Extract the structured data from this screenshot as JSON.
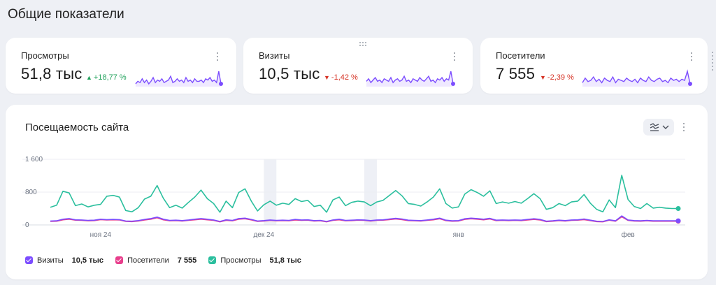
{
  "page": {
    "title": "Общие показатели"
  },
  "colors": {
    "visits": "#7c4dff",
    "visitors": "#e83e8c",
    "views": "#2bbf9e",
    "up": "#1fa15a",
    "down": "#d63325"
  },
  "metrics": [
    {
      "label": "Просмотры",
      "value": "51,8 тыс",
      "delta": "+18,77 %",
      "direction": "up",
      "menu_icon": "kebab-icon",
      "spark": [
        4,
        6,
        5,
        8,
        5,
        7,
        4,
        6,
        9,
        5,
        7,
        6,
        8,
        5,
        6,
        7,
        10,
        5,
        6,
        8,
        6,
        7,
        5,
        9,
        6,
        7,
        5,
        8,
        6,
        6,
        7,
        5,
        8,
        7,
        9,
        6,
        7,
        5,
        14,
        4
      ]
    },
    {
      "label": "Визиты",
      "value": "10,5 тыс",
      "delta": "-1,42 %",
      "direction": "down",
      "menu_icon": "kebab-icon",
      "spark": [
        7,
        9,
        6,
        8,
        10,
        7,
        8,
        6,
        9,
        8,
        7,
        10,
        6,
        8,
        9,
        7,
        8,
        11,
        7,
        8,
        6,
        9,
        8,
        7,
        10,
        8,
        7,
        9,
        11,
        7,
        8,
        6,
        9,
        8,
        10,
        7,
        9,
        8,
        15,
        5
      ]
    },
    {
      "label": "Посетители",
      "value": "7 555",
      "delta": "-2,39 %",
      "direction": "down",
      "menu_icon": "kebab-icon",
      "spark": [
        6,
        10,
        7,
        8,
        11,
        7,
        9,
        6,
        10,
        8,
        7,
        11,
        6,
        9,
        8,
        7,
        10,
        8,
        7,
        9,
        6,
        10,
        8,
        7,
        11,
        8,
        7,
        9,
        10,
        7,
        8,
        6,
        10,
        8,
        9,
        7,
        9,
        8,
        16,
        5
      ]
    }
  ],
  "chart": {
    "title": "Посещаемость сайта",
    "type_button_icon": "line-chart-icon",
    "dropdown_icon": "chevron-down-icon",
    "menu_icon": "kebab-icon",
    "drag_handle_icon": "drag-handle-icon"
  },
  "legend": [
    {
      "key": "visits",
      "label": "Визиты",
      "value": "10,5 тыс"
    },
    {
      "key": "visitors",
      "label": "Посетители",
      "value": "7 555"
    },
    {
      "key": "views",
      "label": "Просмотры",
      "value": "51,8 тыс"
    }
  ],
  "chart_data": {
    "type": "line",
    "ylim": [
      0,
      1600
    ],
    "y_ticks": [
      {
        "value": 1600,
        "label": "1 600"
      },
      {
        "value": 800,
        "label": "800"
      },
      {
        "value": 0,
        "label": "0"
      }
    ],
    "x_count": 101,
    "x_ticks": [
      {
        "index": 8,
        "label": "ноя 24"
      },
      {
        "index": 34,
        "label": "дек 24"
      },
      {
        "index": 65,
        "label": "янв"
      },
      {
        "index": 92,
        "label": "фев"
      }
    ],
    "highlight_ranges": [
      [
        34,
        36
      ],
      [
        50,
        52
      ]
    ],
    "grid": true,
    "legend_position": "bottom-left",
    "series": [
      {
        "name": "Просмотры",
        "key": "views",
        "values": [
          430,
          480,
          820,
          780,
          470,
          510,
          440,
          480,
          500,
          700,
          720,
          680,
          350,
          320,
          420,
          630,
          700,
          960,
          650,
          420,
          480,
          410,
          550,
          680,
          850,
          640,
          520,
          310,
          580,
          420,
          790,
          880,
          580,
          340,
          490,
          580,
          480,
          530,
          500,
          640,
          570,
          600,
          450,
          480,
          310,
          610,
          680,
          470,
          550,
          580,
          560,
          470,
          560,
          600,
          720,
          840,
          710,
          520,
          500,
          460,
          560,
          680,
          880,
          520,
          410,
          440,
          750,
          860,
          790,
          700,
          830,
          520,
          560,
          530,
          570,
          530,
          640,
          760,
          640,
          380,
          420,
          520,
          470,
          560,
          580,
          740,
          530,
          380,
          320,
          610,
          420,
          1210,
          620,
          450,
          400,
          520,
          410,
          430,
          410,
          400,
          400
        ]
      },
      {
        "name": "Посетители",
        "key": "visitors",
        "values": [
          85,
          90,
          125,
          140,
          115,
          110,
          100,
          105,
          130,
          120,
          125,
          120,
          85,
          80,
          95,
          120,
          140,
          175,
          125,
          100,
          105,
          95,
          110,
          125,
          140,
          125,
          110,
          75,
          110,
          100,
          140,
          150,
          120,
          85,
          95,
          110,
          100,
          105,
          100,
          120,
          110,
          115,
          95,
          100,
          75,
          110,
          125,
          100,
          105,
          115,
          110,
          95,
          110,
          115,
          130,
          145,
          130,
          105,
          100,
          95,
          110,
          125,
          150,
          105,
          90,
          95,
          135,
          150,
          140,
          125,
          145,
          105,
          110,
          105,
          110,
          105,
          120,
          135,
          120,
          80,
          90,
          105,
          95,
          110,
          115,
          130,
          105,
          80,
          75,
          115,
          90,
          200,
          110,
          95,
          90,
          100,
          90,
          90,
          90,
          90,
          90
        ]
      },
      {
        "name": "Визиты",
        "key": "visits",
        "values": [
          95,
          100,
          140,
          155,
          125,
          120,
          110,
          115,
          140,
          130,
          135,
          130,
          95,
          90,
          105,
          135,
          155,
          190,
          140,
          110,
          115,
          105,
          120,
          140,
          155,
          140,
          120,
          85,
          125,
          110,
          155,
          165,
          135,
          95,
          105,
          120,
          110,
          115,
          110,
          135,
          120,
          125,
          105,
          110,
          85,
          120,
          140,
          110,
          115,
          125,
          120,
          105,
          120,
          125,
          145,
          160,
          145,
          115,
          110,
          105,
          120,
          140,
          165,
          115,
          100,
          105,
          150,
          165,
          155,
          140,
          160,
          115,
          120,
          115,
          120,
          115,
          135,
          150,
          135,
          90,
          100,
          115,
          105,
          120,
          125,
          145,
          115,
          90,
          85,
          125,
          100,
          220,
          120,
          105,
          100,
          110,
          100,
          100,
          100,
          100,
          100
        ]
      }
    ]
  }
}
